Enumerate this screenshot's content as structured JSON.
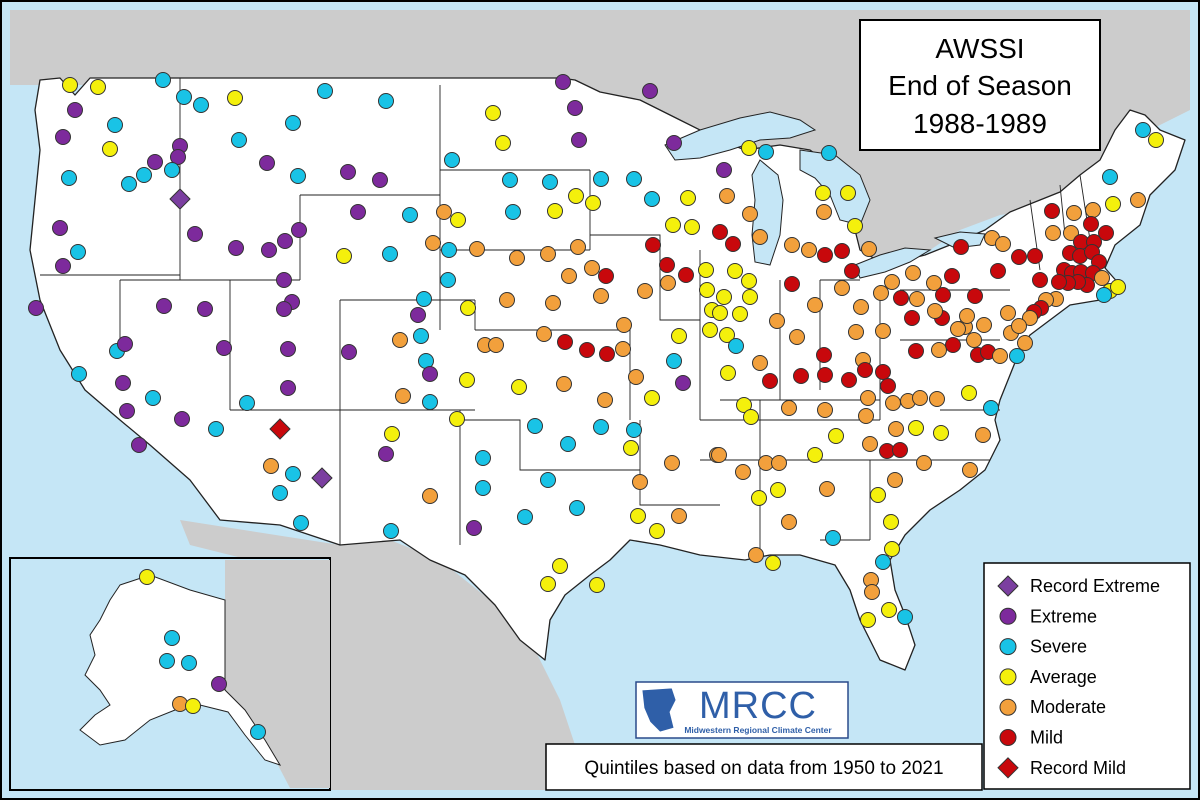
{
  "title": {
    "line1": "AWSSI",
    "line2": "End of Season",
    "line3": "1988-1989"
  },
  "footer_note": "Quintiles based on data from 1950 to 2021",
  "logo": {
    "name": "MRCC",
    "subtitle": "Midwestern Regional Climate Center"
  },
  "colors": {
    "record_extreme": "#7b3fa0",
    "extreme": "#7d2a9c",
    "severe": "#19c3e6",
    "average": "#f4f00c",
    "moderate": "#f2a03c",
    "mild": "#c8080c",
    "record_mild": "#c8080c",
    "land": "#ffffff",
    "water": "#c5e6f6",
    "outside": "#cccccc"
  },
  "legend": [
    {
      "key": "record_extreme",
      "label": "Record Extreme",
      "shape": "diamond"
    },
    {
      "key": "extreme",
      "label": "Extreme",
      "shape": "circle"
    },
    {
      "key": "severe",
      "label": "Severe",
      "shape": "circle"
    },
    {
      "key": "average",
      "label": "Average",
      "shape": "circle"
    },
    {
      "key": "moderate",
      "label": "Moderate",
      "shape": "circle"
    },
    {
      "key": "mild",
      "label": "Mild",
      "shape": "circle"
    },
    {
      "key": "record_mild",
      "label": "Record Mild",
      "shape": "diamond"
    }
  ]
}
